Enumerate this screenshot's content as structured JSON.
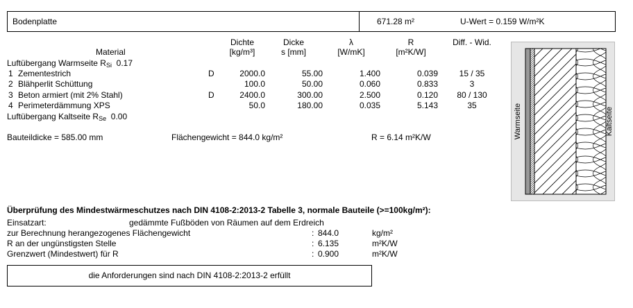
{
  "header": {
    "title": "Bodenplatte",
    "area": "671.28 m²",
    "u_value": "U-Wert = 0.159 W/m²K"
  },
  "table": {
    "material_header": "Material",
    "columns": [
      {
        "name": "Dichte",
        "unit": "[kg/m³]"
      },
      {
        "name": "Dicke",
        "unit": "s [mm]"
      },
      {
        "name": "λ",
        "unit": "[W/mK]"
      },
      {
        "name": "R",
        "unit": "[m²K/W]"
      },
      {
        "name": "Diff. - Wid."
      }
    ],
    "warm_side": {
      "label": "Luftübergang Warmseite R",
      "sub": "Si",
      "value": "0.17"
    },
    "rows": [
      {
        "no": "1",
        "name": "Zementestrich",
        "flag": "D",
        "density": "2000.0",
        "thickness": "55.00",
        "lambda": "1.400",
        "r": "0.039",
        "diff": "15 / 35"
      },
      {
        "no": "2",
        "name": "Blähperlit Schüttung",
        "density": "100.0",
        "thickness": "50.00",
        "lambda": "0.060",
        "r": "0.833",
        "diff": "3"
      },
      {
        "no": "3",
        "name": "Beton armiert (mit 2% Stahl)",
        "flag": "D",
        "density": "2400.0",
        "thickness": "300.00",
        "lambda": "2.500",
        "r": "0.120",
        "diff": "80 / 130"
      },
      {
        "no": "4",
        "name": "Perimeterdämmung XPS",
        "density": "50.0",
        "thickness": "180.00",
        "lambda": "0.035",
        "r": "5.143",
        "diff": "35"
      }
    ],
    "cold_side": {
      "label": "Luftübergang Kaltseite R",
      "sub": "Se",
      "value": "0.00"
    }
  },
  "summary": {
    "thickness": "Bauteildicke = 585.00 mm",
    "weight": "Flächengewicht = 844.0 kg/m²",
    "r": "R = 6.14 m²K/W"
  },
  "diagram": {
    "warm": "Warmseite",
    "cold": "Kaltseite"
  },
  "check": {
    "title": "Überprüfung des Mindestwärmeschutzes nach DIN 4108-2:2013-2 Tabelle 3, normale Bauteile (>=100kg/m²):",
    "usage_label": "Einsatzart:",
    "usage": "gedämmte Fußböden von Räumen auf dem Erdreich",
    "rows": [
      {
        "label": "zur Berechnung herangezogenes Flächengewicht",
        "value": "844.0",
        "unit": "kg/m²"
      },
      {
        "label": "R an der ungünstigsten Stelle",
        "value": "6.135",
        "unit": "m²K/W"
      },
      {
        "label": "Grenzwert (Mindestwert) für R",
        "value": "0.900",
        "unit": "m²K/W"
      }
    ],
    "result": "die Anforderungen sind nach DIN 4108-2:2013-2 erfüllt"
  }
}
